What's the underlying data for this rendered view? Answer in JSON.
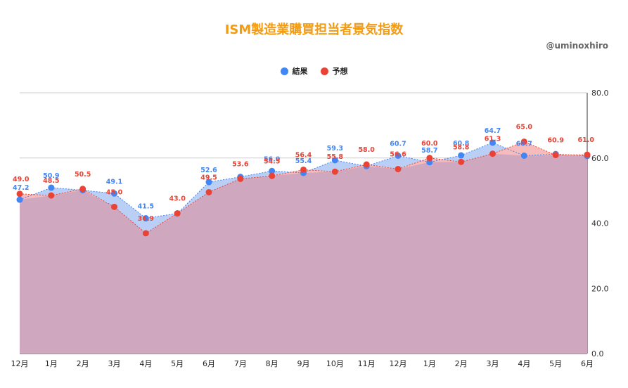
{
  "chart_data": {
    "type": "area",
    "title": "ISM製造業購買担当者景気指数",
    "credit": "@uminoxhiro",
    "categories": [
      "12月",
      "1月",
      "2月",
      "3月",
      "4月",
      "5月",
      "6月",
      "7月",
      "8月",
      "9月",
      "10月",
      "11月",
      "12月",
      "1月",
      "2月",
      "3月",
      "4月",
      "5月",
      "6月"
    ],
    "series": [
      {
        "name": "結果",
        "color": "#4285f4",
        "fill": "#b9cff6",
        "values": [
          47.2,
          50.9,
          50.1,
          49.1,
          41.5,
          43.0,
          52.6,
          54.2,
          56.0,
          55.4,
          59.3,
          57.5,
          60.7,
          58.7,
          60.8,
          64.7,
          60.7,
          61.2,
          60.6
        ]
      },
      {
        "name": "予想",
        "color": "#ea4335",
        "fill": "#f6bcbc",
        "values": [
          49.0,
          48.5,
          50.5,
          45.0,
          36.9,
          43.0,
          49.5,
          53.6,
          54.5,
          56.4,
          55.8,
          58.0,
          56.6,
          60.0,
          58.8,
          61.3,
          65.0,
          60.9,
          61.0
        ]
      }
    ],
    "data_labels": {
      "results": [
        "47.2",
        "50.9",
        "",
        "49.1",
        "41.5",
        "",
        "52.6",
        "",
        "56.0",
        "55.4",
        "59.3",
        "",
        "60.7",
        "58.7",
        "60.8",
        "64.7",
        "60.7",
        "",
        ""
      ],
      "forecast": [
        "49.0",
        "48.5",
        "50.5",
        "45.0",
        "36.9",
        "43.0",
        "49.5",
        "53.6",
        "54.5",
        "56.4",
        "55.8",
        "58.0",
        "56.6",
        "60.0",
        "58.8",
        "61.3",
        "65.0",
        "60.9",
        "61.0"
      ]
    },
    "y_axis": {
      "min": 0,
      "max": 80,
      "ticks": [
        "0.0",
        "20.0",
        "40.0",
        "60.0",
        "80.0"
      ],
      "position": "right"
    },
    "grid": true,
    "legend_position": "top-center",
    "overlap_fill": "#cfa8c0"
  }
}
